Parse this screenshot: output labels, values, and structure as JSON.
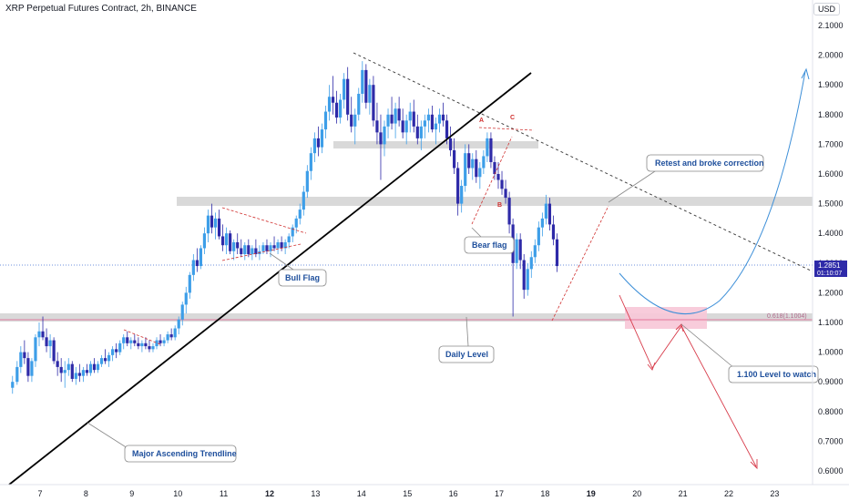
{
  "header": {
    "title": "XRP Perpetual Futures Contract, 2h, BINANCE",
    "currency": "USD"
  },
  "price_axis": {
    "ticks": [
      "2.1000",
      "2.0000",
      "1.9000",
      "1.8000",
      "1.7000",
      "1.6000",
      "1.5000",
      "1.4000",
      "1.3000",
      "1.2000",
      "1.1000",
      "1.0000",
      "0.9000",
      "0.8000",
      "0.7000",
      "0.6000"
    ],
    "current_price": "1.2851",
    "countdown": "01:10:07"
  },
  "time_axis": {
    "ticks": [
      "7",
      "8",
      "9",
      "10",
      "11",
      "12",
      "13",
      "14",
      "15",
      "16",
      "17",
      "18",
      "19",
      "20",
      "21",
      "22",
      "23"
    ],
    "bold_ticks": [
      "12",
      "19"
    ]
  },
  "annotations": {
    "retest": "Retest and broke correction",
    "bear_flag": "Bear flag",
    "bull_flag": "Bull Flag",
    "daily_level": "Daily Level",
    "level_watch": "1.100 Level to watch",
    "trendline": "Major Ascending Trendline",
    "fib": "0.618(1.1004)",
    "point_a": "A",
    "point_b": "B",
    "point_c": "C"
  },
  "colors": {
    "up": "#3d9ee8",
    "down": "#2e2aa8",
    "zone": "#d9d9d9",
    "pink_zone": "#f7c6d7",
    "arrow_red": "#d73a49",
    "curve_blue": "#3d8fd8"
  },
  "chart_data": {
    "type": "candlestick",
    "ylim": [
      0.58,
      2.12
    ],
    "x_days": [
      6.4,
      23.4
    ],
    "ohlc": [
      [
        6.4,
        0.88,
        0.92,
        0.86,
        0.9
      ],
      [
        6.5,
        0.9,
        0.97,
        0.89,
        0.95
      ],
      [
        6.58,
        0.95,
        1.02,
        0.93,
        1.0
      ],
      [
        6.66,
        1.0,
        1.04,
        0.96,
        0.98
      ],
      [
        6.74,
        0.98,
        1.0,
        0.9,
        0.92
      ],
      [
        6.82,
        0.92,
        0.98,
        0.9,
        0.97
      ],
      [
        6.9,
        0.97,
        1.06,
        0.95,
        1.05
      ],
      [
        6.98,
        1.05,
        1.1,
        1.02,
        1.07
      ],
      [
        7.06,
        1.07,
        1.12,
        1.04,
        1.05
      ],
      [
        7.14,
        1.05,
        1.08,
        1.0,
        1.02
      ],
      [
        7.22,
        1.02,
        1.06,
        0.98,
        1.04
      ],
      [
        7.3,
        1.04,
        1.05,
        0.96,
        0.97
      ],
      [
        7.38,
        0.97,
        1.0,
        0.92,
        0.95
      ],
      [
        7.46,
        0.95,
        0.98,
        0.9,
        0.93
      ],
      [
        7.54,
        0.93,
        0.97,
        0.88,
        0.94
      ],
      [
        7.62,
        0.94,
        0.98,
        0.92,
        0.96
      ],
      [
        7.7,
        0.96,
        0.97,
        0.9,
        0.91
      ],
      [
        7.78,
        0.91,
        0.95,
        0.89,
        0.93
      ],
      [
        7.86,
        0.93,
        0.96,
        0.9,
        0.92
      ],
      [
        7.94,
        0.92,
        0.95,
        0.9,
        0.94
      ],
      [
        8.02,
        0.94,
        0.96,
        0.92,
        0.93
      ],
      [
        8.1,
        0.93,
        0.97,
        0.92,
        0.96
      ],
      [
        8.18,
        0.96,
        0.98,
        0.93,
        0.94
      ],
      [
        8.26,
        0.94,
        0.97,
        0.93,
        0.96
      ],
      [
        8.34,
        0.96,
        0.99,
        0.95,
        0.98
      ],
      [
        8.42,
        0.98,
        1.01,
        0.96,
        0.97
      ],
      [
        8.5,
        0.97,
        1.0,
        0.95,
        0.99
      ],
      [
        8.58,
        0.99,
        1.02,
        0.97,
        1.01
      ],
      [
        8.66,
        1.01,
        1.03,
        0.98,
        1.0
      ],
      [
        8.74,
        1.0,
        1.04,
        0.99,
        1.03
      ],
      [
        8.82,
        1.03,
        1.06,
        1.01,
        1.05
      ],
      [
        8.9,
        1.05,
        1.07,
        1.02,
        1.03
      ],
      [
        8.98,
        1.03,
        1.05,
        1.01,
        1.04
      ],
      [
        9.06,
        1.04,
        1.06,
        1.02,
        1.03
      ],
      [
        9.14,
        1.03,
        1.05,
        1.01,
        1.02
      ],
      [
        9.22,
        1.02,
        1.04,
        1.0,
        1.03
      ],
      [
        9.3,
        1.03,
        1.05,
        1.01,
        1.02
      ],
      [
        9.38,
        1.02,
        1.04,
        1.0,
        1.01
      ],
      [
        9.46,
        1.01,
        1.03,
        1.0,
        1.02
      ],
      [
        9.54,
        1.02,
        1.05,
        1.01,
        1.04
      ],
      [
        9.62,
        1.04,
        1.06,
        1.02,
        1.03
      ],
      [
        9.7,
        1.03,
        1.05,
        1.02,
        1.04
      ],
      [
        9.78,
        1.04,
        1.07,
        1.03,
        1.06
      ],
      [
        9.86,
        1.06,
        1.08,
        1.04,
        1.05
      ],
      [
        9.94,
        1.05,
        1.09,
        1.04,
        1.08
      ],
      [
        10.02,
        1.08,
        1.12,
        1.06,
        1.11
      ],
      [
        10.1,
        1.11,
        1.17,
        1.09,
        1.16
      ],
      [
        10.18,
        1.16,
        1.22,
        1.13,
        1.2
      ],
      [
        10.26,
        1.2,
        1.27,
        1.18,
        1.26
      ],
      [
        10.34,
        1.26,
        1.33,
        1.24,
        1.31
      ],
      [
        10.42,
        1.31,
        1.35,
        1.27,
        1.29
      ],
      [
        10.5,
        1.29,
        1.36,
        1.28,
        1.35
      ],
      [
        10.58,
        1.35,
        1.42,
        1.33,
        1.4
      ],
      [
        10.66,
        1.4,
        1.48,
        1.37,
        1.46
      ],
      [
        10.74,
        1.46,
        1.5,
        1.4,
        1.42
      ],
      [
        10.82,
        1.42,
        1.47,
        1.38,
        1.45
      ],
      [
        10.9,
        1.45,
        1.48,
        1.38,
        1.39
      ],
      [
        10.98,
        1.39,
        1.43,
        1.34,
        1.36
      ],
      [
        11.06,
        1.36,
        1.42,
        1.33,
        1.4
      ],
      [
        11.14,
        1.4,
        1.41,
        1.33,
        1.34
      ],
      [
        11.22,
        1.34,
        1.38,
        1.31,
        1.37
      ],
      [
        11.3,
        1.37,
        1.4,
        1.33,
        1.35
      ],
      [
        11.38,
        1.35,
        1.38,
        1.32,
        1.33
      ],
      [
        11.46,
        1.33,
        1.37,
        1.31,
        1.36
      ],
      [
        11.54,
        1.36,
        1.38,
        1.32,
        1.33
      ],
      [
        11.62,
        1.33,
        1.36,
        1.31,
        1.35
      ],
      [
        11.7,
        1.35,
        1.38,
        1.32,
        1.33
      ],
      [
        11.78,
        1.33,
        1.36,
        1.31,
        1.34
      ],
      [
        11.86,
        1.34,
        1.37,
        1.33,
        1.36
      ],
      [
        11.94,
        1.36,
        1.38,
        1.33,
        1.34
      ],
      [
        12.02,
        1.34,
        1.37,
        1.32,
        1.36
      ],
      [
        12.1,
        1.36,
        1.39,
        1.34,
        1.35
      ],
      [
        12.18,
        1.35,
        1.38,
        1.33,
        1.37
      ],
      [
        12.26,
        1.37,
        1.39,
        1.34,
        1.35
      ],
      [
        12.34,
        1.35,
        1.38,
        1.33,
        1.37
      ],
      [
        12.42,
        1.37,
        1.4,
        1.35,
        1.39
      ],
      [
        12.5,
        1.39,
        1.43,
        1.37,
        1.42
      ],
      [
        12.58,
        1.42,
        1.46,
        1.4,
        1.45
      ],
      [
        12.66,
        1.45,
        1.5,
        1.43,
        1.48
      ],
      [
        12.74,
        1.48,
        1.56,
        1.46,
        1.54
      ],
      [
        12.82,
        1.54,
        1.63,
        1.52,
        1.61
      ],
      [
        12.9,
        1.61,
        1.69,
        1.58,
        1.67
      ],
      [
        12.98,
        1.67,
        1.74,
        1.64,
        1.72
      ],
      [
        13.06,
        1.72,
        1.76,
        1.66,
        1.69
      ],
      [
        13.14,
        1.69,
        1.77,
        1.67,
        1.75
      ],
      [
        13.22,
        1.75,
        1.83,
        1.72,
        1.81
      ],
      [
        13.3,
        1.81,
        1.9,
        1.78,
        1.86
      ],
      [
        13.38,
        1.86,
        1.93,
        1.8,
        1.84
      ],
      [
        13.46,
        1.84,
        1.88,
        1.77,
        1.79
      ],
      [
        13.54,
        1.79,
        1.87,
        1.77,
        1.85
      ],
      [
        13.62,
        1.85,
        1.94,
        1.82,
        1.92
      ],
      [
        13.7,
        1.92,
        1.96,
        1.78,
        1.8
      ],
      [
        13.78,
        1.8,
        1.86,
        1.74,
        1.76
      ],
      [
        13.86,
        1.76,
        1.82,
        1.7,
        1.8
      ],
      [
        13.94,
        1.8,
        1.89,
        1.78,
        1.87
      ],
      [
        14.02,
        1.87,
        1.98,
        1.84,
        1.95
      ],
      [
        14.1,
        1.95,
        1.97,
        1.82,
        1.84
      ],
      [
        14.18,
        1.84,
        1.92,
        1.8,
        1.9
      ],
      [
        14.26,
        1.9,
        1.93,
        1.76,
        1.78
      ],
      [
        14.34,
        1.78,
        1.84,
        1.7,
        1.74
      ],
      [
        14.42,
        1.74,
        1.8,
        1.58,
        1.7
      ],
      [
        14.5,
        1.7,
        1.78,
        1.66,
        1.76
      ],
      [
        14.58,
        1.76,
        1.82,
        1.72,
        1.8
      ],
      [
        14.66,
        1.8,
        1.86,
        1.75,
        1.77
      ],
      [
        14.74,
        1.77,
        1.84,
        1.72,
        1.82
      ],
      [
        14.82,
        1.82,
        1.86,
        1.76,
        1.78
      ],
      [
        14.9,
        1.78,
        1.82,
        1.72,
        1.74
      ],
      [
        14.98,
        1.74,
        1.8,
        1.7,
        1.78
      ],
      [
        15.06,
        1.78,
        1.84,
        1.74,
        1.81
      ],
      [
        15.14,
        1.81,
        1.85,
        1.74,
        1.76
      ],
      [
        15.22,
        1.76,
        1.8,
        1.7,
        1.72
      ],
      [
        15.3,
        1.72,
        1.78,
        1.68,
        1.76
      ],
      [
        15.38,
        1.76,
        1.8,
        1.72,
        1.78
      ],
      [
        15.46,
        1.78,
        1.82,
        1.74,
        1.8
      ],
      [
        15.54,
        1.8,
        1.83,
        1.74,
        1.75
      ],
      [
        15.62,
        1.75,
        1.79,
        1.7,
        1.77
      ],
      [
        15.7,
        1.77,
        1.82,
        1.74,
        1.8
      ],
      [
        15.78,
        1.8,
        1.84,
        1.76,
        1.78
      ],
      [
        15.86,
        1.78,
        1.8,
        1.7,
        1.72
      ],
      [
        15.94,
        1.72,
        1.76,
        1.66,
        1.68
      ],
      [
        16.02,
        1.68,
        1.72,
        1.6,
        1.62
      ],
      [
        16.1,
        1.62,
        1.64,
        1.46,
        1.5
      ],
      [
        16.18,
        1.5,
        1.58,
        1.47,
        1.56
      ],
      [
        16.26,
        1.56,
        1.7,
        1.54,
        1.67
      ],
      [
        16.34,
        1.67,
        1.7,
        1.6,
        1.62
      ],
      [
        16.42,
        1.62,
        1.67,
        1.58,
        1.65
      ],
      [
        16.5,
        1.65,
        1.68,
        1.57,
        1.59
      ],
      [
        16.58,
        1.59,
        1.64,
        1.55,
        1.62
      ],
      [
        16.66,
        1.62,
        1.68,
        1.6,
        1.66
      ],
      [
        16.74,
        1.66,
        1.74,
        1.64,
        1.72
      ],
      [
        16.82,
        1.72,
        1.74,
        1.62,
        1.64
      ],
      [
        16.9,
        1.64,
        1.66,
        1.58,
        1.6
      ],
      [
        16.98,
        1.6,
        1.64,
        1.55,
        1.58
      ],
      [
        17.06,
        1.58,
        1.61,
        1.53,
        1.55
      ],
      [
        17.14,
        1.55,
        1.58,
        1.5,
        1.52
      ],
      [
        17.22,
        1.52,
        1.54,
        1.4,
        1.43
      ],
      [
        17.3,
        1.43,
        1.45,
        1.12,
        1.3
      ],
      [
        17.38,
        1.3,
        1.4,
        1.28,
        1.38
      ],
      [
        17.46,
        1.38,
        1.4,
        1.28,
        1.31
      ],
      [
        17.54,
        1.31,
        1.33,
        1.18,
        1.21
      ],
      [
        17.62,
        1.21,
        1.3,
        1.19,
        1.28
      ],
      [
        17.7,
        1.28,
        1.34,
        1.25,
        1.32
      ],
      [
        17.78,
        1.32,
        1.38,
        1.3,
        1.36
      ],
      [
        17.86,
        1.36,
        1.44,
        1.34,
        1.42
      ],
      [
        17.94,
        1.42,
        1.47,
        1.39,
        1.45
      ],
      [
        18.02,
        1.45,
        1.53,
        1.43,
        1.5
      ],
      [
        18.1,
        1.5,
        1.52,
        1.41,
        1.43
      ],
      [
        18.18,
        1.43,
        1.46,
        1.36,
        1.38
      ],
      [
        18.26,
        1.38,
        1.4,
        1.27,
        1.29
      ]
    ],
    "levels": {
      "resistance_zone": [
        1.49,
        1.51
      ],
      "mid_zone": [
        1.68,
        1.7
      ],
      "daily_level": [
        1.1,
        1.12
      ],
      "fib_0618": 1.1004
    }
  }
}
